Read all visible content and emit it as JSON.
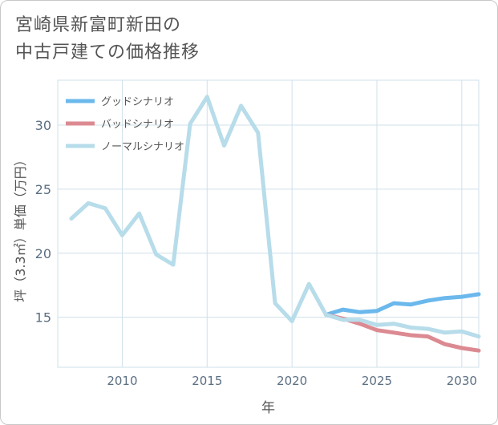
{
  "title": {
    "line1": "宮崎県新富町新田の",
    "line2": "中古戸建ての価格推移"
  },
  "colors": {
    "good": "#6bb8ec",
    "bad": "#dc8a92",
    "normal": "#b7dcea",
    "grid": "#cfe0ea",
    "tick": "#5b6f82"
  },
  "chart_data": {
    "type": "line",
    "title": "宮崎県新富町新田の中古戸建ての価格推移",
    "xlabel": "年",
    "ylabel": "坪（3.3㎡）単価（万円）",
    "xlim": [
      2006.2,
      2031
    ],
    "ylim": [
      11.1,
      33.5
    ],
    "xticks": [
      2010,
      2015,
      2020,
      2025,
      2030
    ],
    "yticks": [
      15,
      20,
      25,
      30
    ],
    "legend_position": "top-left",
    "series": [
      {
        "name": "グッドシナリオ",
        "key": "good",
        "x": [
          2022,
          2023,
          2024,
          2025,
          2026,
          2027,
          2028,
          2029,
          2030,
          2031
        ],
        "y": [
          15.2,
          15.6,
          15.4,
          15.5,
          16.1,
          16.0,
          16.3,
          16.5,
          16.6,
          16.8
        ]
      },
      {
        "name": "バッドシナリオ",
        "key": "bad",
        "x": [
          2022,
          2023,
          2024,
          2025,
          2026,
          2027,
          2028,
          2029,
          2030,
          2031
        ],
        "y": [
          15.2,
          14.9,
          14.5,
          14.0,
          13.8,
          13.6,
          13.5,
          12.9,
          12.6,
          12.4
        ]
      },
      {
        "name": "ノーマルシナリオ",
        "key": "normal",
        "x": [
          2007,
          2008,
          2009,
          2010,
          2011,
          2012,
          2013,
          2014,
          2015,
          2016,
          2017,
          2018,
          2019,
          2020,
          2021,
          2022,
          2023,
          2024,
          2025,
          2026,
          2027,
          2028,
          2029,
          2030,
          2031
        ],
        "y": [
          22.7,
          23.9,
          23.5,
          21.4,
          23.1,
          19.9,
          19.1,
          30.1,
          32.2,
          28.4,
          31.5,
          29.4,
          16.1,
          14.7,
          17.6,
          15.2,
          14.8,
          14.8,
          14.4,
          14.5,
          14.2,
          14.1,
          13.8,
          13.9,
          13.5
        ]
      }
    ]
  }
}
